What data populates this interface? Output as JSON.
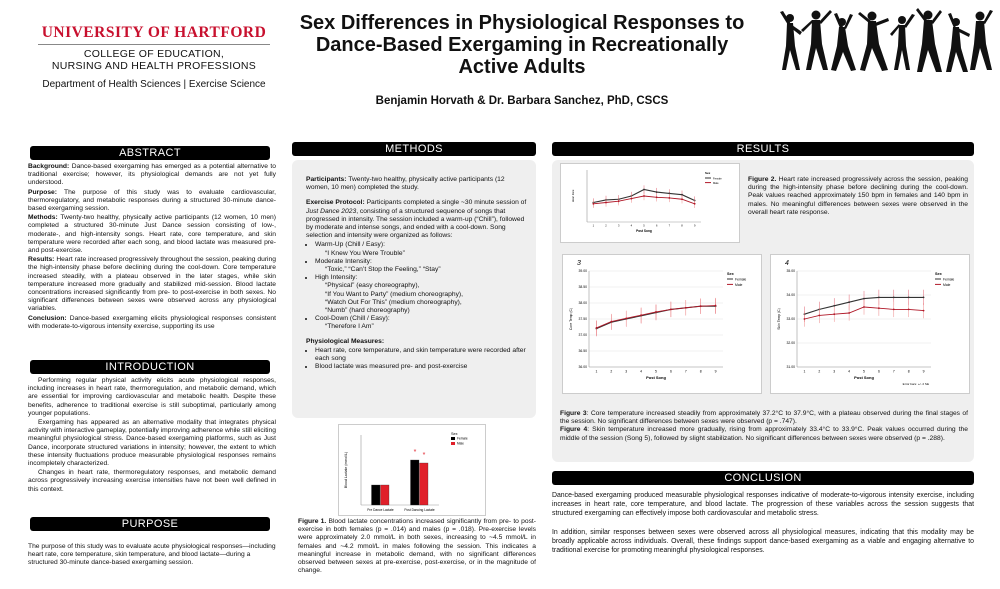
{
  "logo": {
    "university": "UNIVERSITY OF HARTFORD",
    "college_line1": "COLLEGE OF EDUCATION,",
    "college_line2": "NURSING AND HEALTH PROFESSIONS"
  },
  "department": "Department of Health Sciences | Exercise Science",
  "title_lines": [
    "Sex Differences in Physiological Responses to",
    "Dance-Based Exergaming in Recreationally",
    "Active Adults"
  ],
  "authors": "Benjamin Horvath & Dr. Barbara Sanchez, PhD, CSCS",
  "headers": {
    "abstract": "ABSTRACT",
    "methods": "METHODS",
    "results": "RESULTS",
    "introduction": "INTRODUCTION",
    "purpose": "PURPOSE",
    "conclusion": "CONCLUSION"
  },
  "abstract": {
    "background_label": "Background:",
    "background": " Dance-based exergaming has emerged as a potential alternative to traditional exercise; however, its physiological demands are not yet fully understood.",
    "purpose_label": "Purpose:",
    "purpose": " The purpose of this study was to evaluate cardiovascular, thermoregulatory, and metabolic responses during a structured 30-minute dance-based exergaming session.",
    "methods_label": "Methods:",
    "methods": " Twenty-two healthy, physically active participants (12 women, 10 men) completed a structured 30-minute Just Dance session consisting of low-, moderate-, and high-intensity songs. Heart rate, core temperature, and skin temperature were recorded after each song, and blood lactate was measured pre- and post-exercise.",
    "results_label": "Results:",
    "results": " Heart rate increased progressively throughout the session, peaking during the high-intensity phase before declining during the cool-down. Core temperature increased steadily, with a plateau observed in the later stages, while skin temperature increased more gradually and stabilized mid-session. Blood lactate concentrations increased significantly from pre- to post-exercise in both sexes. No significant differences between sexes were observed across any physiological variables.",
    "conclusion_label": "Conclusion:",
    "conclusion": " Dance-based exergaming elicits physiological responses consistent with moderate-to-vigorous intensity exercise, supporting its use"
  },
  "introduction": {
    "p1": "Performing regular physical activity elicits acute physiological responses, including increases in heart rate, thermoregulation, and metabolic demand, which are essential for improving cardiovascular and metabolic health. Despite these benefits, adherence to traditional exercise is still suboptimal, particularly among younger populations.",
    "p2": "Exergaming has appeared as an alternative modality that integrates physical activity with interactive gameplay, potentially improving adherence while still eliciting meaningful physiological stress. Dance-based exergaming platforms, such as Just Dance, incorporate structured variations in intensity; however, the extent to which these intensity fluctuations produce measurable physiological responses remains incompletely characterized.",
    "p3": "Changes in heart rate, thermoregulatory responses, and metabolic demand across progressively increasing exercise intensities have not been well defined in this context."
  },
  "purpose_text": "The purpose of this study was to evaluate acute physiological responses—including heart rate, core temperature, skin temperature, and blood lactate—during a structured 30-minute dance-based exergaming session.",
  "methods": {
    "participants_label": "Participants:",
    "participants": " Twenty-two healthy, physically active participants (12 women, 10 men) completed the study.",
    "protocol_label": "Exercise Protocol:",
    "protocol_a": " Participants completed a single ~30 minute session of ",
    "protocol_game": "Just Dance 2023",
    "protocol_b": ", consisting of a structured sequence of songs that progressed in intensity. The session included a warm-up (“Chill”), followed by moderate and intense songs, and ended with a cool-down. Song selection and intensity were organized as follows:",
    "phases": [
      {
        "label": "Warm-Up (Chill / Easy):",
        "songs": [
          "“I Knew You Were Trouble”"
        ]
      },
      {
        "label": "Moderate Intensity:",
        "songs": [
          "“Toxic,” “Can’t Stop the Feeling,” “Stay”"
        ]
      },
      {
        "label": "High Intensity:",
        "songs": [
          "“Physical” (easy choreography),",
          "“If You Want to Party” (medium choreography),",
          "“Watch Out For This” (medium choreography),",
          "“Numb” (hard choreography)"
        ]
      },
      {
        "label": "Cool-Down (Chill / Easy):",
        "songs": [
          "“Therefore I Am”"
        ]
      }
    ],
    "measures_label": "Physiological Measures:",
    "measures": [
      "Heart rate, core temperature, and skin temperature were recorded after each song",
      "Blood lactate was measured pre- and post-exercise"
    ]
  },
  "figure1_caption_label": "Figure 1.",
  "figure1_caption": " Blood lactate concentrations increased significantly from pre- to post-exercise in both females (p = .014) and males (p = .018). Pre-exercise levels were approximately 2.0 mmol/L in both sexes, increasing to ~4.5 mmol/L in females and ~4.2 mmol/L in males following the session. This indicates a meaningful increase in metabolic demand, with no significant differences observed between sexes at pre-exercise, post-exercise, or in the magnitude of change.",
  "figure2_caption_label": "Figure 2.",
  "figure2_caption": " Heart rate increased progressively across the session, peaking during the high-intensity phase before declining during the cool-down. Peak values reached approximately 150 bpm in females and 140 bpm in males. No meaningful differences between sexes were observed in the overall heart rate response.",
  "figure3_caption_label": "Figure 3",
  "figure3_caption": ": Core temperature increased steadily from approximately 37.2°C to 37.9°C, with a plateau observed during the final stages of the session. No significant differences between sexes were observed (p = .747).",
  "figure4_caption_label": "Figure 4",
  "figure4_caption": ": Skin temperature increased more gradually, rising from approximately 33.4°C to 33.9°C. Peak values occurred during the middle of the session (Song 5), followed by slight stabilization. No significant differences between sexes were observed (p = .288).",
  "conclusion": {
    "p1": "Dance-based exergaming produced measurable physiological responses indicative of moderate-to-vigorous intensity exercise, including increases in heart rate, core temperature, and blood lactate. The progression of these variables across the session suggests that structured exergaming can effectively impose both cardiovascular and metabolic stress.",
    "p2": "In addition, similar responses between sexes were observed across all physiological measures, indicating that this modality may be broadly applicable across individuals. Overall, these findings support dance-based exergaming as a viable and engaging alternative to traditional exercise for promoting meaningful physiological responses."
  },
  "colors": {
    "female": "#000000",
    "male": "#e0202a",
    "accent_red": "#c8102e",
    "header_bg": "#000000"
  },
  "chart_data": [
    {
      "id": "figure1",
      "type": "bar",
      "title": "",
      "xlabel": "",
      "ylabel": "Blood Lactate (mmol/L)",
      "legend_title": "Sex",
      "legend_position": "top-right",
      "categories": [
        "Pre Dance Lactate",
        "Post Dancing Lactate"
      ],
      "series": [
        {
          "name": "Female",
          "values": [
            2.0,
            4.5
          ]
        },
        {
          "name": "Male",
          "values": [
            2.0,
            4.2
          ]
        }
      ],
      "annotations": [
        "*",
        "*"
      ],
      "ylim": [
        0,
        7
      ]
    },
    {
      "id": "figure2",
      "type": "line",
      "title": "",
      "xlabel": "Post Song",
      "ylabel": "Heart Rate",
      "legend_title": "Sex",
      "legend_position": "top-right",
      "x": [
        1,
        2,
        3,
        4,
        5,
        6,
        7,
        8,
        9
      ],
      "series": [
        {
          "name": "Female",
          "values": [
            130,
            134,
            135,
            140,
            150,
            146,
            144,
            142,
            133
          ]
        },
        {
          "name": "Male",
          "values": [
            128,
            130,
            132,
            136,
            140,
            138,
            137,
            135,
            128
          ]
        }
      ],
      "ylim": [
        100,
        180
      ]
    },
    {
      "id": "figure3",
      "type": "line",
      "title": "3",
      "xlabel": "Post Song",
      "ylabel": "Core Temp (C)",
      "legend_title": "Sex",
      "legend_position": "top-right",
      "x": [
        1,
        2,
        3,
        4,
        5,
        6,
        7,
        8,
        9
      ],
      "series": [
        {
          "name": "Female",
          "values": [
            37.2,
            37.4,
            37.5,
            37.6,
            37.7,
            37.8,
            37.85,
            37.9,
            37.9
          ]
        },
        {
          "name": "Male",
          "values": [
            37.22,
            37.42,
            37.52,
            37.62,
            37.72,
            37.8,
            37.85,
            37.9,
            37.92
          ]
        }
      ],
      "yticks": [
        "36.00",
        "36.50",
        "37.00",
        "37.50",
        "38.00",
        "38.50",
        "39.00"
      ],
      "ylim": [
        36.0,
        39.0
      ]
    },
    {
      "id": "figure4",
      "type": "line",
      "title": "4",
      "xlabel": "Post Song",
      "ylabel": "Skin Temp (C)",
      "legend_title": "Sex",
      "legend_position": "top-right",
      "footnote": "Error bars: +/- 2 SE",
      "x": [
        1,
        2,
        3,
        4,
        5,
        6,
        7,
        8,
        9
      ],
      "series": [
        {
          "name": "Female",
          "values": [
            33.2,
            33.4,
            33.55,
            33.7,
            33.85,
            33.9,
            33.9,
            33.9,
            33.9
          ]
        },
        {
          "name": "Male",
          "values": [
            33.0,
            33.15,
            33.2,
            33.25,
            33.5,
            33.45,
            33.4,
            33.4,
            33.35
          ]
        }
      ],
      "yticks": [
        "31.00",
        "32.00",
        "33.00",
        "34.00",
        "35.00"
      ],
      "ylim": [
        31.0,
        35.0
      ]
    }
  ]
}
